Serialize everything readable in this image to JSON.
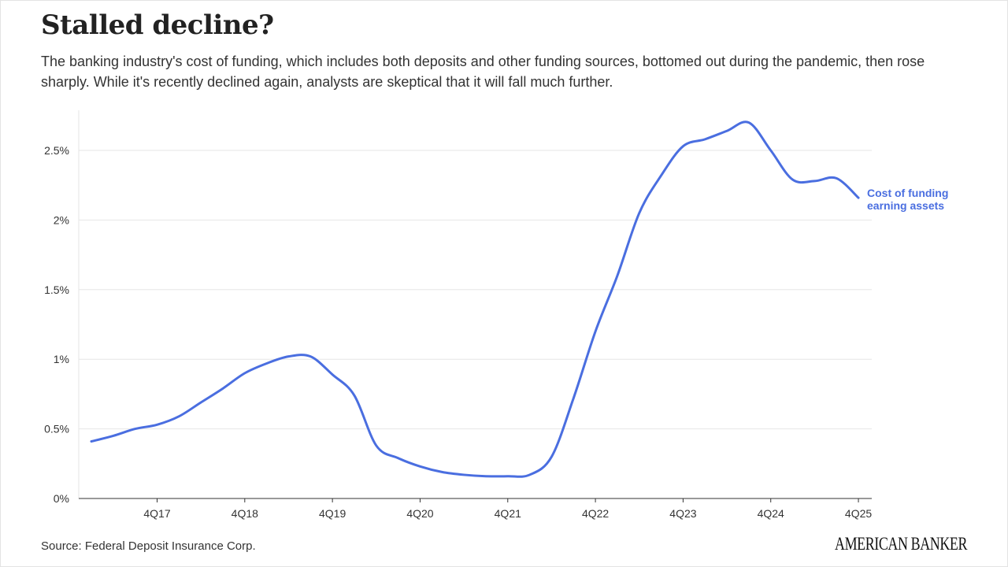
{
  "title": "Stalled decline?",
  "subtitle": "The banking industry's cost of funding, which includes both deposits and other funding sources, bottomed out during the pandemic, then rose sharply. While it's recently declined again, analysts are skeptical that it will fall much further.",
  "source": "Source: Federal Deposit Insurance Corp.",
  "brand": "AMERICAN BANKER",
  "chart_data": {
    "type": "line",
    "title": "Stalled decline?",
    "xlabel": "",
    "ylabel": "",
    "ylim": [
      0,
      2.8
    ],
    "grid": true,
    "legend": "inline-right",
    "y_ticks": [
      {
        "value": 0,
        "label": "0%"
      },
      {
        "value": 0.5,
        "label": "0.5%"
      },
      {
        "value": 1,
        "label": "1%"
      },
      {
        "value": 1.5,
        "label": "1.5%"
      },
      {
        "value": 2,
        "label": "2%"
      },
      {
        "value": 2.5,
        "label": "2.5%"
      }
    ],
    "x_ticks": [
      "4Q17",
      "4Q18",
      "4Q19",
      "4Q20",
      "4Q21",
      "4Q22",
      "4Q23",
      "4Q24",
      "4Q25"
    ],
    "x": [
      "1Q17",
      "2Q17",
      "3Q17",
      "4Q17",
      "1Q18",
      "2Q18",
      "3Q18",
      "4Q18",
      "1Q19",
      "2Q19",
      "3Q19",
      "4Q19",
      "1Q20",
      "2Q20",
      "3Q20",
      "4Q20",
      "1Q21",
      "2Q21",
      "3Q21",
      "4Q21",
      "1Q22",
      "2Q22",
      "3Q22",
      "4Q22",
      "1Q23",
      "2Q23",
      "3Q23",
      "4Q23",
      "1Q24",
      "2Q24",
      "3Q24",
      "4Q24",
      "1Q25",
      "2Q25",
      "3Q25",
      "4Q25"
    ],
    "series": [
      {
        "name": "Cost of funding earning assets",
        "name_lines": [
          "Cost of funding",
          "earning assets"
        ],
        "color": "#4a6ee0",
        "values": [
          0.41,
          0.45,
          0.5,
          0.53,
          0.59,
          0.69,
          0.79,
          0.9,
          0.97,
          1.02,
          1.02,
          0.89,
          0.74,
          0.38,
          0.29,
          0.23,
          0.19,
          0.17,
          0.16,
          0.16,
          0.17,
          0.3,
          0.72,
          1.2,
          1.6,
          2.05,
          2.32,
          2.53,
          2.58,
          2.64,
          2.7,
          2.5,
          2.29,
          2.28,
          2.3,
          2.16
        ]
      }
    ]
  }
}
